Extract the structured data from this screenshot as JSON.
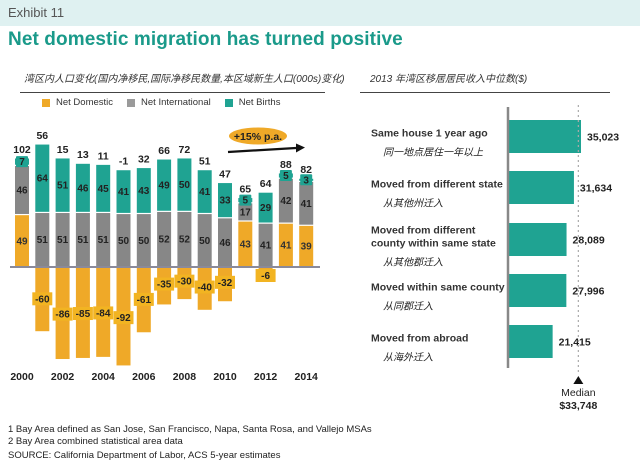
{
  "header": {
    "exhibit_label": "Exhibit 11",
    "title": "Net domestic migration has turned positive"
  },
  "colors": {
    "domestic": "#efa928",
    "international": "#878787",
    "births": "#1fa392",
    "accent": "#1a9a8a",
    "header_bg": "#dff1f1"
  },
  "chart_data": [
    {
      "type": "bar",
      "stacked": true,
      "title": "湾区内人口变化(国内净移民,国际净移民数量,本区域新生人口(000s)变化)",
      "legend": [
        "Net Domestic",
        "Net International",
        "Net Births"
      ],
      "legend_position": "top",
      "categories": [
        "2000",
        "2001",
        "2002",
        "2003",
        "2004",
        "2005",
        "2006",
        "2007",
        "2008",
        "2009",
        "2010",
        "2011",
        "2012",
        "2013",
        "2014"
      ],
      "x_tick_labels": [
        "2000",
        "2002",
        "2004",
        "2006",
        "2008",
        "2010",
        "2012",
        "2014"
      ],
      "series": [
        {
          "name": "Net Domestic",
          "values": [
            49,
            -60,
            -86,
            -85,
            -84,
            -92,
            -61,
            -35,
            -30,
            -40,
            -32,
            43,
            -6,
            41,
            39
          ]
        },
        {
          "name": "Net International",
          "values": [
            46,
            51,
            51,
            51,
            51,
            50,
            50,
            52,
            52,
            50,
            46,
            17,
            41,
            42,
            41
          ]
        },
        {
          "name": "Net Births",
          "values": [
            7,
            64,
            51,
            46,
            45,
            41,
            43,
            49,
            50,
            41,
            33,
            5,
            29,
            5,
            3
          ]
        }
      ],
      "totals": [
        102,
        56,
        15,
        13,
        11,
        -1,
        32,
        66,
        72,
        51,
        47,
        65,
        64,
        88,
        82
      ],
      "annotation": "+15% p.a.",
      "ylim": [
        -95,
        120
      ],
      "grid": false
    },
    {
      "type": "bar",
      "orientation": "horizontal",
      "title": "2013 年湾区移居居民收入中位数($)",
      "categories": [
        {
          "label": "Same house 1 year ago",
          "label_cn": "同一地点居住一年以上"
        },
        {
          "label": "Moved from different state",
          "label_cn": "从其他州迁入"
        },
        {
          "label": "Moved from different county within same state",
          "label_cn": "从其他郡迁入"
        },
        {
          "label": "Moved within same county",
          "label_cn": "从同郡迁入"
        },
        {
          "label": "Moved from abroad",
          "label_cn": "从海外迁入"
        }
      ],
      "values": [
        35023,
        31634,
        28089,
        27996,
        21415
      ],
      "value_labels": [
        "35,023",
        "31,634",
        "28,089",
        "27,996",
        "21,415"
      ],
      "reference_line": {
        "label": "Median",
        "value": 33748,
        "value_label": "$33,748"
      },
      "xlim": [
        0,
        35500
      ]
    }
  ],
  "left_chart": {
    "title": "湾区内人口变化(国内净移民,国际净移民数量,本区域新生人口(000s)变化)",
    "legend": {
      "domestic": "Net Domestic",
      "international": "Net International",
      "births": "Net Births"
    },
    "annotation": "+15% p.a."
  },
  "right_chart": {
    "title": "2013 年湾区移居居民收入中位数($)",
    "rows": [
      {
        "label_lines": [
          "Same house 1 year ago"
        ],
        "label_cn": "同一地点居住一年以上",
        "value_label": "35,023"
      },
      {
        "label_lines": [
          "Moved from different state"
        ],
        "label_cn": "从其他州迁入",
        "value_label": "31,634"
      },
      {
        "label_lines": [
          "Moved from different",
          "county within same state"
        ],
        "label_cn": "从其他郡迁入",
        "value_label": "28,089"
      },
      {
        "label_lines": [
          "Moved within same county"
        ],
        "label_cn": "从同郡迁入",
        "value_label": "27,996"
      },
      {
        "label_lines": [
          "Moved from abroad"
        ],
        "label_cn": "从海外迁入",
        "value_label": "21,415"
      }
    ],
    "median_label": "Median",
    "median_value_label": "$33,748"
  },
  "footnotes": [
    "1 Bay Area defined as San Jose, San Francisco, Napa, Santa Rosa, and Vallejo MSAs",
    "2 Bay Area combined statistical area data"
  ],
  "source": "SOURCE: California Department of Labor, ACS 5-year estimates"
}
